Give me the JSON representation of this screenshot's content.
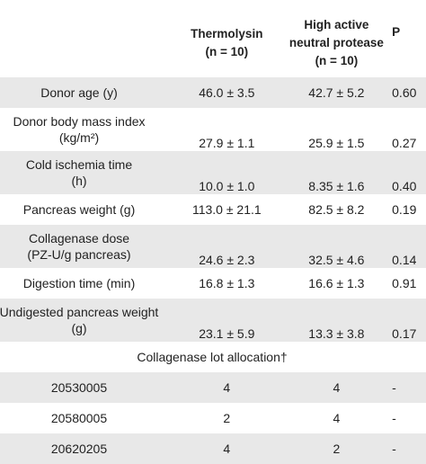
{
  "table": {
    "headers": {
      "col_a": [
        "Thermolysin",
        "(n = 10)"
      ],
      "col_b": [
        "High active",
        "neutral protease",
        "(n = 10)"
      ],
      "col_p": "P"
    },
    "rows": [
      {
        "label": [
          "Donor age (y)"
        ],
        "a": "46.0 ± 3.5",
        "b": "42.7 ± 5.2",
        "p": "0.60"
      },
      {
        "label": [
          "Donor body mass index",
          "(kg/m²)"
        ],
        "a": "27.9 ± 1.1",
        "b": "25.9 ± 1.5",
        "p": "0.27"
      },
      {
        "label": [
          "Cold ischemia time",
          "(h)"
        ],
        "a": "10.0 ± 1.0",
        "b": "8.35 ± 1.6",
        "p": "0.40"
      },
      {
        "label": [
          "Pancreas weight (g)"
        ],
        "a": "113.0 ± 21.1",
        "b": "82.5 ± 8.2",
        "p": "0.19"
      },
      {
        "label": [
          "Collagenase dose",
          "(PZ-U/g pancreas)"
        ],
        "a": "24.6 ± 2.3",
        "b": "32.5 ± 4.6",
        "p": "0.14"
      },
      {
        "label": [
          "Digestion time (min)"
        ],
        "a": "16.8 ± 1.3",
        "b": "16.6 ± 1.3",
        "p": "0.91"
      },
      {
        "label": [
          "Undigested pancreas weight",
          "(g)"
        ],
        "a": "23.1 ± 5.9",
        "b": "13.3 ± 3.8",
        "p": "0.17"
      }
    ],
    "section_title": "Collagenase lot allocation†",
    "lots": [
      {
        "label": "20530005",
        "a": "4",
        "b": "4",
        "p": "-"
      },
      {
        "label": "20580005",
        "a": "2",
        "b": "4",
        "p": "-"
      },
      {
        "label": "20620205",
        "a": "4",
        "b": "2",
        "p": "-"
      }
    ]
  }
}
